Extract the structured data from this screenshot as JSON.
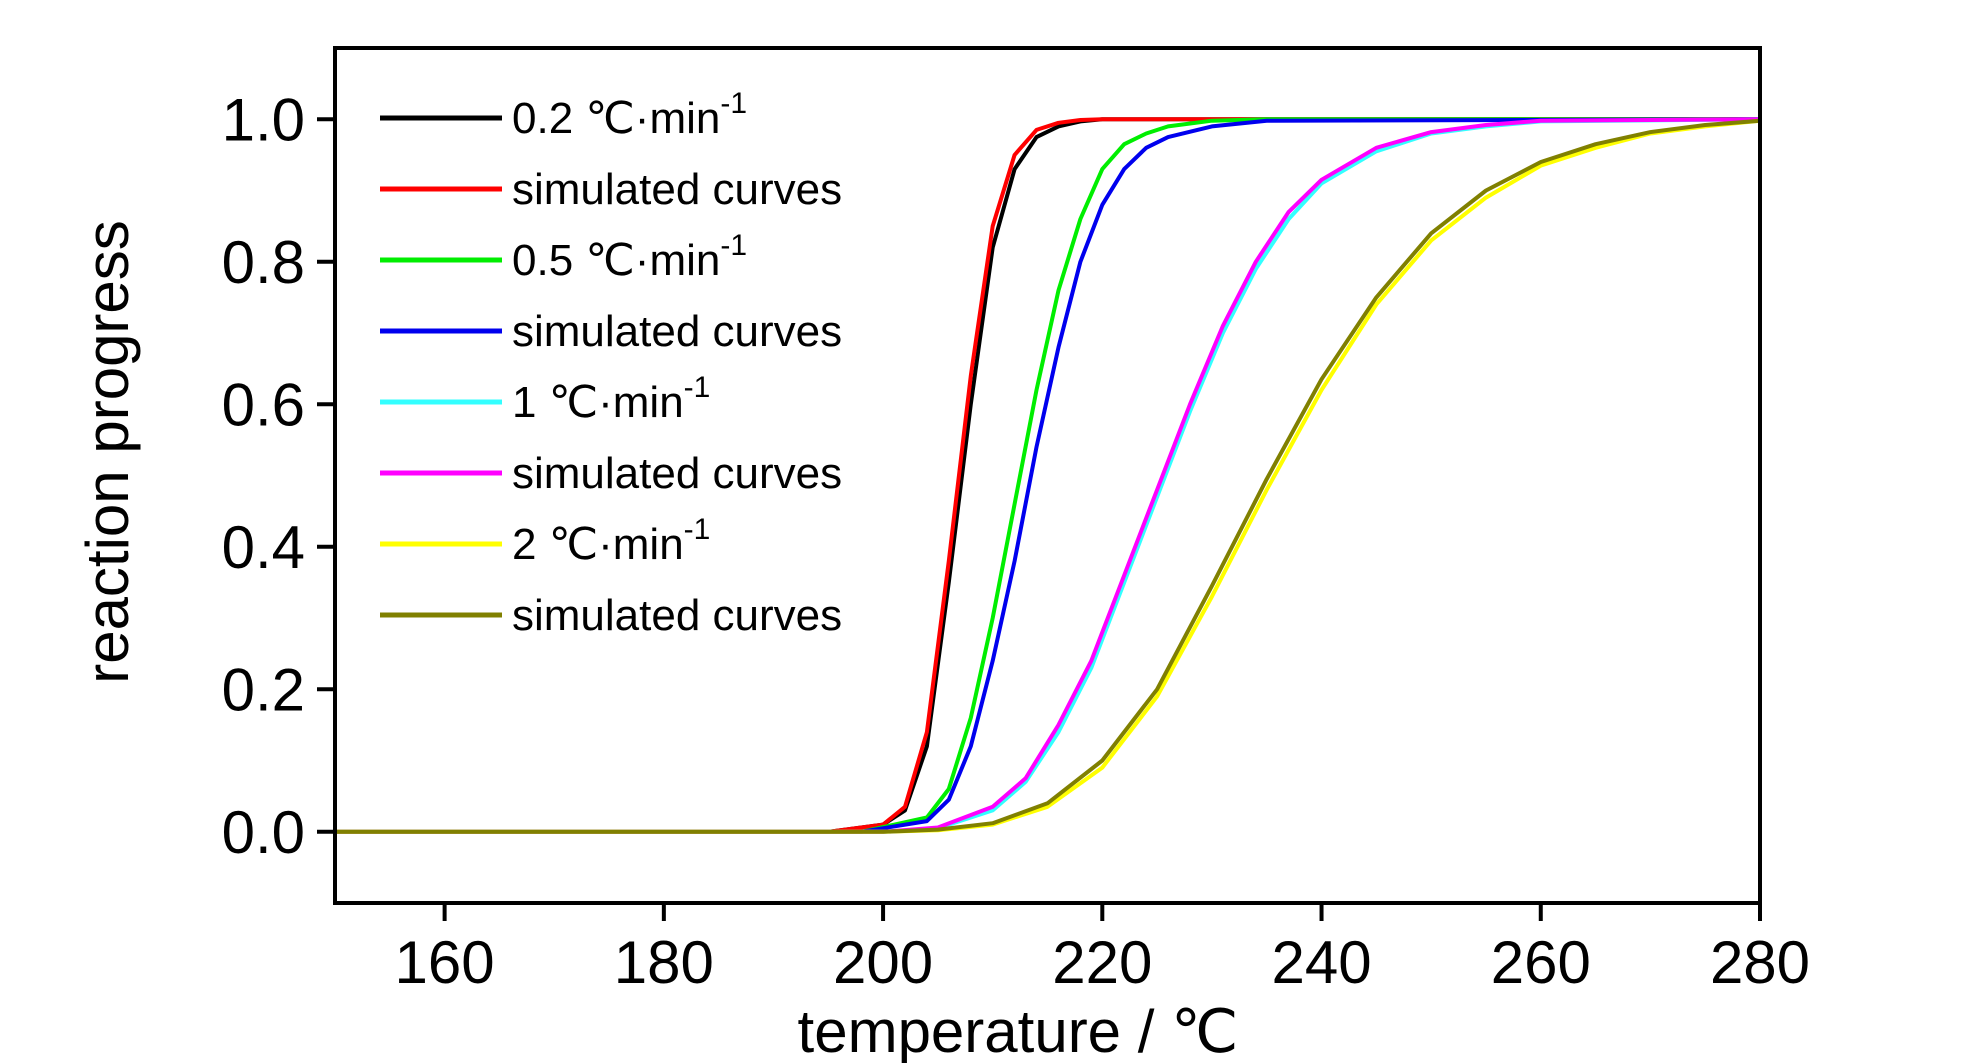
{
  "chart_data": {
    "type": "line",
    "title": "",
    "xlabel": "temperature / ℃",
    "ylabel": "reaction progress",
    "xlim": [
      150,
      280
    ],
    "ylim": [
      -0.1,
      1.1
    ],
    "xticks": [
      160,
      180,
      200,
      220,
      240,
      260,
      280
    ],
    "yticks": [
      0.0,
      0.2,
      0.4,
      0.6,
      0.8,
      1.0
    ],
    "xtick_labels": [
      "160",
      "180",
      "200",
      "220",
      "240",
      "260",
      "280"
    ],
    "ytick_labels": [
      "0.0",
      "0.2",
      "0.4",
      "0.6",
      "0.8",
      "1.0"
    ],
    "grid": false,
    "legend_position": "top-left",
    "series": [
      {
        "name": "0.2 ℃·min-1",
        "label_main": "0.2 ℃·min",
        "label_sup": "-1",
        "color": "#000000",
        "x": [
          150,
          195,
          200,
          202,
          204,
          206,
          208,
          210,
          212,
          214,
          216,
          218,
          220,
          225,
          280
        ],
        "y": [
          0,
          0,
          0.01,
          0.03,
          0.12,
          0.35,
          0.6,
          0.82,
          0.93,
          0.975,
          0.99,
          0.997,
          1.0,
          1.0,
          1.0
        ]
      },
      {
        "name": "simulated curves",
        "color": "#ff0000",
        "x": [
          150,
          195,
          200,
          202,
          204,
          206,
          208,
          210,
          212,
          214,
          216,
          218,
          220,
          225,
          280
        ],
        "y": [
          0,
          0,
          0.01,
          0.035,
          0.14,
          0.38,
          0.64,
          0.85,
          0.95,
          0.985,
          0.995,
          0.999,
          1.0,
          1.0,
          1.0
        ]
      },
      {
        "name": "0.5 ℃·min-1",
        "label_main": "0.5 ℃·min",
        "label_sup": "-1",
        "color": "#00ee00",
        "x": [
          150,
          198,
          204,
          206,
          208,
          210,
          212,
          214,
          216,
          218,
          220,
          222,
          224,
          226,
          230,
          235,
          280
        ],
        "y": [
          0,
          0,
          0.02,
          0.06,
          0.16,
          0.3,
          0.46,
          0.62,
          0.76,
          0.86,
          0.93,
          0.965,
          0.98,
          0.99,
          0.998,
          1.0,
          1.0
        ]
      },
      {
        "name": "simulated curves",
        "color": "#0000ee",
        "x": [
          150,
          198,
          204,
          206,
          208,
          210,
          212,
          214,
          216,
          218,
          220,
          222,
          224,
          226,
          230,
          235,
          280
        ],
        "y": [
          0,
          0,
          0.015,
          0.045,
          0.12,
          0.24,
          0.38,
          0.54,
          0.68,
          0.8,
          0.88,
          0.93,
          0.96,
          0.975,
          0.99,
          0.998,
          1.0
        ]
      },
      {
        "name": "1 ℃·min-1",
        "label_main": "1 ℃·min",
        "label_sup": "-1",
        "color": "#33ffff",
        "x": [
          150,
          200,
          205,
          210,
          213,
          216,
          219,
          222,
          225,
          228,
          231,
          234,
          237,
          240,
          245,
          250,
          255,
          260,
          280
        ],
        "y": [
          0,
          0,
          0.005,
          0.03,
          0.07,
          0.14,
          0.23,
          0.35,
          0.47,
          0.59,
          0.7,
          0.79,
          0.86,
          0.91,
          0.955,
          0.98,
          0.99,
          0.997,
          1.0
        ]
      },
      {
        "name": "simulated curves",
        "color": "#ff00ff",
        "x": [
          150,
          200,
          205,
          210,
          213,
          216,
          219,
          222,
          225,
          228,
          231,
          234,
          237,
          240,
          245,
          250,
          255,
          260,
          280
        ],
        "y": [
          0,
          0,
          0.006,
          0.035,
          0.075,
          0.15,
          0.24,
          0.36,
          0.48,
          0.6,
          0.71,
          0.8,
          0.87,
          0.915,
          0.96,
          0.982,
          0.992,
          0.998,
          1.0
        ]
      },
      {
        "name": "2 ℃·min-1",
        "label_main": "2 ℃·min",
        "label_sup": "-1",
        "color": "#ffff00",
        "x": [
          150,
          200,
          205,
          210,
          215,
          220,
          225,
          230,
          235,
          240,
          245,
          250,
          255,
          260,
          265,
          270,
          275,
          280
        ],
        "y": [
          0,
          0,
          0.002,
          0.01,
          0.035,
          0.09,
          0.19,
          0.33,
          0.48,
          0.62,
          0.74,
          0.83,
          0.89,
          0.935,
          0.96,
          0.98,
          0.99,
          0.998
        ]
      },
      {
        "name": "simulated curves",
        "color": "#808000",
        "x": [
          150,
          200,
          205,
          210,
          215,
          220,
          225,
          230,
          235,
          240,
          245,
          250,
          255,
          260,
          265,
          270,
          275,
          280
        ],
        "y": [
          0,
          0,
          0.003,
          0.012,
          0.04,
          0.1,
          0.2,
          0.345,
          0.495,
          0.635,
          0.75,
          0.84,
          0.9,
          0.94,
          0.965,
          0.982,
          0.992,
          0.998
        ]
      }
    ]
  }
}
